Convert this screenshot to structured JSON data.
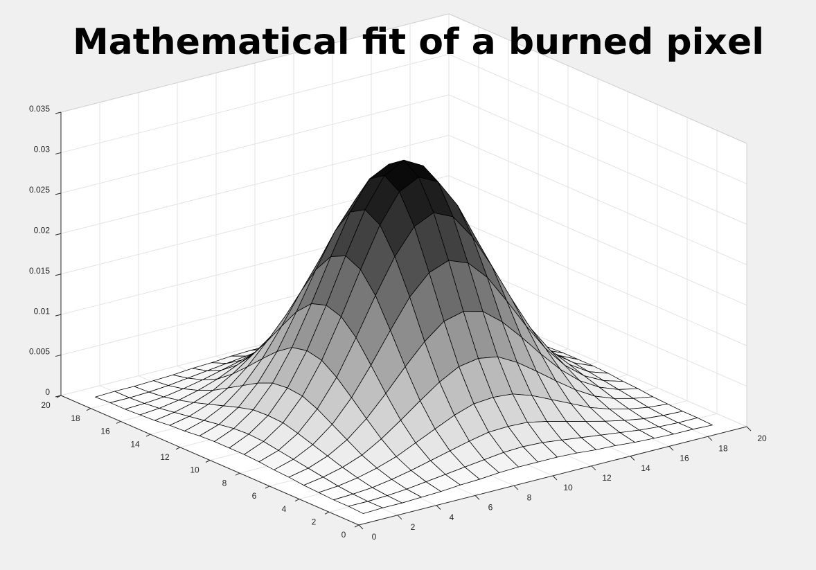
{
  "chart_data": {
    "type": "surface",
    "title": "Mathematical fit of a burned pixel",
    "x": [
      1,
      2,
      3,
      4,
      5,
      6,
      7,
      8,
      9,
      10,
      11,
      12,
      13,
      14,
      15,
      16,
      17,
      18,
      19
    ],
    "y": [
      1,
      2,
      3,
      4,
      5,
      6,
      7,
      8,
      9,
      10,
      11,
      12,
      13,
      14,
      15,
      16,
      17,
      18,
      19
    ],
    "z": [
      [
        0,
        0.0001,
        0.0001,
        0.0002,
        0.0003,
        0.0005,
        0.0006,
        0.0008,
        0.0009,
        0.0009,
        0.0009,
        0.0008,
        0.0006,
        0.0005,
        0.0003,
        0.0002,
        0.0001,
        0.0001,
        0
      ],
      [
        0.0001,
        0.0001,
        0.0002,
        0.0004,
        0.0007,
        0.001,
        0.0013,
        0.0016,
        0.0019,
        0.002,
        0.0019,
        0.0016,
        0.0013,
        0.001,
        0.0007,
        0.0004,
        0.0002,
        0.0001,
        0.0001
      ],
      [
        0.0001,
        0.0002,
        0.0004,
        0.0008,
        0.0013,
        0.0019,
        0.0025,
        0.0031,
        0.0036,
        0.0037,
        0.0036,
        0.0031,
        0.0025,
        0.0019,
        0.0013,
        0.0008,
        0.0004,
        0.0002,
        0.0001
      ],
      [
        0.0002,
        0.0004,
        0.0008,
        0.0014,
        0.0022,
        0.0033,
        0.0044,
        0.0055,
        0.0063,
        0.0065,
        0.0063,
        0.0055,
        0.0044,
        0.0033,
        0.0022,
        0.0014,
        0.0008,
        0.0004,
        0.0002
      ],
      [
        0.0003,
        0.0007,
        0.0013,
        0.0022,
        0.0036,
        0.0053,
        0.0071,
        0.0088,
        0.0101,
        0.0105,
        0.0101,
        0.0088,
        0.0071,
        0.0053,
        0.0036,
        0.0022,
        0.0013,
        0.0007,
        0.0003
      ],
      [
        0.0005,
        0.001,
        0.0019,
        0.0033,
        0.0053,
        0.0078,
        0.0105,
        0.013,
        0.0149,
        0.0155,
        0.0149,
        0.013,
        0.0105,
        0.0078,
        0.0053,
        0.0033,
        0.0019,
        0.001,
        0.0005
      ],
      [
        0.0006,
        0.0013,
        0.0025,
        0.0044,
        0.0071,
        0.0105,
        0.0142,
        0.0177,
        0.0201,
        0.021,
        0.0201,
        0.0177,
        0.0142,
        0.0105,
        0.0071,
        0.0044,
        0.0025,
        0.0013,
        0.0006
      ],
      [
        0.0008,
        0.0016,
        0.0031,
        0.0055,
        0.0088,
        0.0131,
        0.0177,
        0.0219,
        0.025,
        0.0261,
        0.025,
        0.0219,
        0.0177,
        0.0131,
        0.0088,
        0.0055,
        0.0031,
        0.0016,
        0.0008
      ],
      [
        0.0009,
        0.0019,
        0.0036,
        0.0063,
        0.0101,
        0.0149,
        0.0201,
        0.025,
        0.0285,
        0.0297,
        0.0285,
        0.025,
        0.0201,
        0.0149,
        0.0101,
        0.0063,
        0.0036,
        0.0019,
        0.0009
      ],
      [
        0.0009,
        0.002,
        0.0037,
        0.0065,
        0.0105,
        0.0155,
        0.021,
        0.0261,
        0.0297,
        0.031,
        0.0297,
        0.0261,
        0.021,
        0.0155,
        0.0105,
        0.0065,
        0.0037,
        0.002,
        0.0009
      ],
      [
        0.0009,
        0.0019,
        0.0036,
        0.0063,
        0.0101,
        0.0149,
        0.0201,
        0.025,
        0.0285,
        0.0297,
        0.0285,
        0.025,
        0.0201,
        0.0149,
        0.0101,
        0.0063,
        0.0036,
        0.0019,
        0.0009
      ],
      [
        0.0008,
        0.0016,
        0.0031,
        0.0055,
        0.0088,
        0.0131,
        0.0177,
        0.0219,
        0.025,
        0.0261,
        0.025,
        0.0219,
        0.0177,
        0.0131,
        0.0088,
        0.0055,
        0.0031,
        0.0016,
        0.0008
      ],
      [
        0.0006,
        0.0013,
        0.0025,
        0.0044,
        0.0071,
        0.0105,
        0.0142,
        0.0177,
        0.0201,
        0.021,
        0.0201,
        0.0177,
        0.0142,
        0.0105,
        0.0071,
        0.0044,
        0.0025,
        0.0013,
        0.0006
      ],
      [
        0.0005,
        0.001,
        0.0019,
        0.0033,
        0.0053,
        0.0078,
        0.0105,
        0.013,
        0.0149,
        0.0155,
        0.0149,
        0.013,
        0.0105,
        0.0078,
        0.0053,
        0.0033,
        0.0019,
        0.001,
        0.0005
      ],
      [
        0.0003,
        0.0007,
        0.0013,
        0.0022,
        0.0036,
        0.0053,
        0.0071,
        0.0088,
        0.0101,
        0.0105,
        0.0101,
        0.0088,
        0.0071,
        0.0053,
        0.0036,
        0.0022,
        0.0013,
        0.0007,
        0.0003
      ],
      [
        0.0002,
        0.0004,
        0.0008,
        0.0014,
        0.0022,
        0.0033,
        0.0044,
        0.0055,
        0.0063,
        0.0065,
        0.0063,
        0.0055,
        0.0044,
        0.0033,
        0.0022,
        0.0014,
        0.0008,
        0.0004,
        0.0002
      ],
      [
        0.0001,
        0.0002,
        0.0004,
        0.0008,
        0.0013,
        0.0019,
        0.0025,
        0.0031,
        0.0036,
        0.0037,
        0.0036,
        0.0031,
        0.0025,
        0.0019,
        0.0013,
        0.0008,
        0.0004,
        0.0002,
        0.0001
      ],
      [
        0.0001,
        0.0001,
        0.0002,
        0.0004,
        0.0007,
        0.001,
        0.0013,
        0.0016,
        0.0019,
        0.002,
        0.0019,
        0.0016,
        0.0013,
        0.001,
        0.0007,
        0.0004,
        0.0002,
        0.0001,
        0.0001
      ],
      [
        0,
        0.0001,
        0.0001,
        0.0002,
        0.0003,
        0.0005,
        0.0006,
        0.0008,
        0.0009,
        0.0009,
        0.0009,
        0.0008,
        0.0006,
        0.0005,
        0.0003,
        0.0002,
        0.0001,
        0.0001,
        0
      ]
    ],
    "xlim": [
      0,
      20
    ],
    "ylim": [
      0,
      20
    ],
    "zlim": [
      0,
      0.035
    ],
    "xticks": [
      0,
      2,
      4,
      6,
      8,
      10,
      12,
      14,
      16,
      18,
      20
    ],
    "yticks": [
      0,
      2,
      4,
      6,
      8,
      10,
      12,
      14,
      16,
      18,
      20
    ],
    "zticks": [
      0,
      0.005,
      0.01,
      0.015,
      0.02,
      0.025,
      0.03,
      0.035
    ],
    "grid": true,
    "color_low": "#ffffff",
    "color_high": "#000000",
    "edge_color": "#000000"
  }
}
